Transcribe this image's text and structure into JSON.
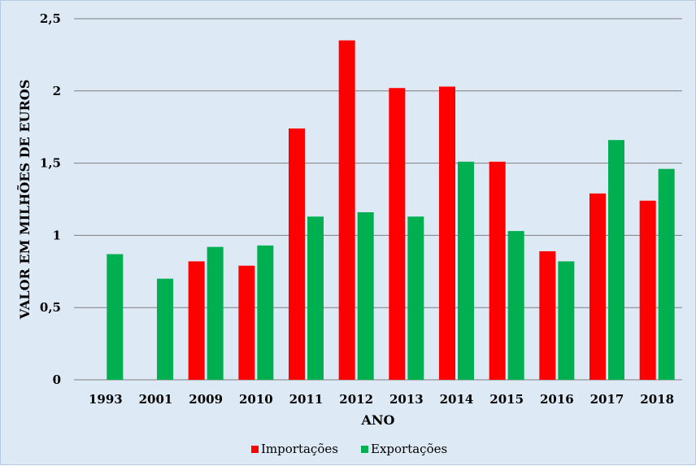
{
  "chart_data": {
    "type": "bar",
    "title": "",
    "xlabel": "ANO",
    "ylabel": "VALOR EM MILHÕES DE EUROS",
    "ylim": [
      0,
      2.5
    ],
    "yticks": [
      "0",
      "0,5",
      "1",
      "1,5",
      "2",
      "2,5"
    ],
    "ytick_values": [
      0,
      0.5,
      1,
      1.5,
      2,
      2.5
    ],
    "grid": true,
    "legend_position": "bottom",
    "categories": [
      "1993",
      "2001",
      "2009",
      "2010",
      "2011",
      "2012",
      "2013",
      "2014",
      "2015",
      "2016",
      "2017",
      "2018"
    ],
    "series": [
      {
        "name": "Importações",
        "color": "#ff0000",
        "values": [
          0,
          0,
          0.82,
          0.79,
          1.74,
          2.35,
          2.02,
          2.03,
          1.51,
          0.89,
          1.29,
          1.24
        ]
      },
      {
        "name": "Exportações",
        "color": "#00b050",
        "values": [
          0.87,
          0.7,
          0.92,
          0.93,
          1.13,
          1.16,
          1.13,
          1.51,
          1.03,
          0.82,
          1.66,
          1.46
        ]
      }
    ]
  }
}
